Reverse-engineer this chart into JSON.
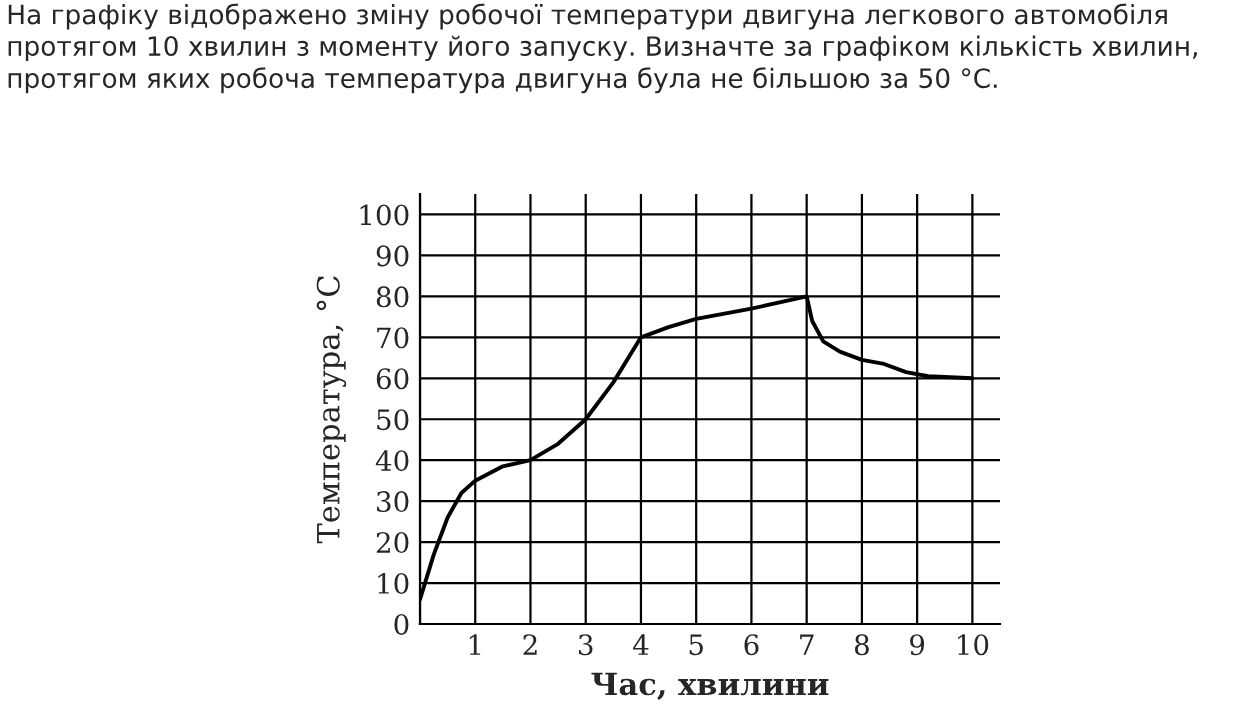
{
  "chart_data": {
    "type": "line",
    "title": "На графіку відображено зміну робочої температури двигуна легкового автомобіля протягом 10 хвилин з моменту його запуску. Визначте за графіком кількість хвилин, протягом яких робоча температура двигуна була не більшою за 50 °С.",
    "xlabel": "Час, хвилини",
    "ylabel": "Температура, °С",
    "series": [
      {
        "color": "#000000",
        "x": [
          0,
          0.25,
          0.5,
          0.75,
          1,
          1.5,
          2,
          2.5,
          3,
          3.5,
          4,
          4.5,
          5,
          6,
          7,
          7.1,
          7.3,
          7.6,
          8,
          8.4,
          8.8,
          9.2,
          10
        ],
        "values": [
          6,
          17,
          26,
          32,
          35,
          38.5,
          40,
          44,
          50,
          59,
          70,
          72.5,
          74.5,
          77,
          80,
          74,
          69,
          66.5,
          64.5,
          63.5,
          61.5,
          60.5,
          60
        ]
      }
    ],
    "xlim": [
      0,
      10.5
    ],
    "ylim": [
      0,
      105
    ],
    "xticks": [
      {
        "value": 0,
        "label": null
      },
      1,
      2,
      3,
      4,
      5,
      6,
      7,
      8,
      9,
      10
    ],
    "yticks": [
      0,
      10,
      20,
      30,
      40,
      50,
      60,
      70,
      80,
      90,
      100
    ],
    "grid": true,
    "marker": "none",
    "line_style": "solid"
  }
}
